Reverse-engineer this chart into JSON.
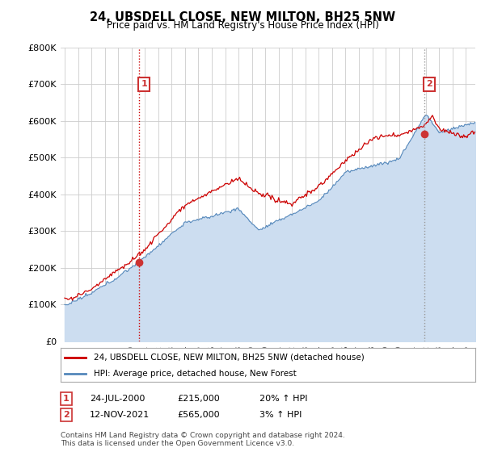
{
  "title": "24, UBSDELL CLOSE, NEW MILTON, BH25 5NW",
  "subtitle": "Price paid vs. HM Land Registry's House Price Index (HPI)",
  "ylabel_ticks": [
    "£0",
    "£100K",
    "£200K",
    "£300K",
    "£400K",
    "£500K",
    "£600K",
    "£700K",
    "£800K"
  ],
  "ytick_values": [
    0,
    100000,
    200000,
    300000,
    400000,
    500000,
    600000,
    700000,
    800000
  ],
  "ylim": [
    0,
    800000
  ],
  "sale1": {
    "date_num": 2000.55,
    "price": 215000,
    "label": "1",
    "info": "24-JUL-2000",
    "price_str": "£215,000",
    "hpi_str": "20% ↑ HPI"
  },
  "sale2": {
    "date_num": 2021.87,
    "price": 565000,
    "label": "2",
    "info": "12-NOV-2021",
    "price_str": "£565,000",
    "hpi_str": "3% ↑ HPI"
  },
  "legend_line1": "24, UBSDELL CLOSE, NEW MILTON, BH25 5NW (detached house)",
  "legend_line2": "HPI: Average price, detached house, New Forest",
  "footer": "Contains HM Land Registry data © Crown copyright and database right 2024.\nThis data is licensed under the Open Government Licence v3.0.",
  "line_color_red": "#cc0000",
  "line_color_blue": "#5588bb",
  "fill_color_blue": "#ccddf0",
  "dashed_color_red": "#cc0000",
  "dashed_color_gray": "#999999",
  "background_color": "#ffffff",
  "grid_color": "#cccccc",
  "annotation_box_color": "#cc3333",
  "xlim_left": 1994.7,
  "xlim_right": 2025.7,
  "n_points": 372
}
